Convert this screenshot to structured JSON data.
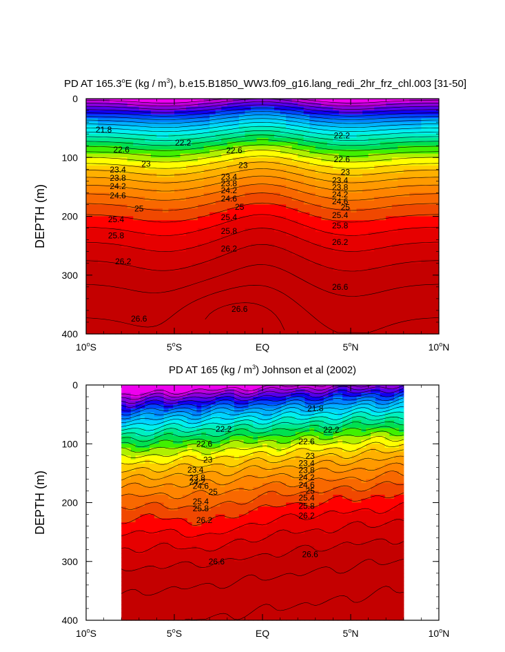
{
  "chart_data": [
    {
      "type": "heatmap",
      "title": "PD AT 165.3°E (kg / m³), b.e15.B1850_WW3.f09_g16.lang_redi_2hr_frz_chl.003 [31-50]",
      "title_parts": {
        "pre": "PD AT 165.3",
        "deg": "o",
        "mid": "E (kg / m",
        "sup": "3",
        "post": "), b.e15.B1850_WW3.f09_g16.lang_redi_2hr_frz_chl.003 [31-50]"
      },
      "xlabel": "",
      "ylabel": "DEPTH (m)",
      "xlim": [
        -10,
        10
      ],
      "ylim": [
        400,
        0
      ],
      "data_xlim": [
        -10,
        10
      ],
      "x_ticks": [
        {
          "value": -10,
          "num": "10",
          "deg": "o",
          "hem": "S"
        },
        {
          "value": -5,
          "num": "5",
          "deg": "o",
          "hem": "S"
        },
        {
          "value": 0,
          "num": "EQ",
          "deg": "",
          "hem": ""
        },
        {
          "value": 5,
          "num": "5",
          "deg": "o",
          "hem": "N"
        },
        {
          "value": 10,
          "num": "10",
          "deg": "o",
          "hem": "N"
        }
      ],
      "y_ticks": [
        {
          "value": 0,
          "label": "0"
        },
        {
          "value": 100,
          "label": "100"
        },
        {
          "value": 200,
          "label": "200"
        },
        {
          "value": 300,
          "label": "300"
        },
        {
          "value": 400,
          "label": "400"
        }
      ],
      "contour_labels": [
        {
          "text": "21.8",
          "x": -9.0,
          "y": 53
        },
        {
          "text": "22.2",
          "x": -4.5,
          "y": 75
        },
        {
          "text": "22.2",
          "x": 4.5,
          "y": 63
        },
        {
          "text": "22.6",
          "x": -8.0,
          "y": 87
        },
        {
          "text": "22.6",
          "x": -1.6,
          "y": 88
        },
        {
          "text": "22.6",
          "x": 4.5,
          "y": 103
        },
        {
          "text": "23",
          "x": -6.6,
          "y": 111
        },
        {
          "text": "23",
          "x": -1.1,
          "y": 113
        },
        {
          "text": "23",
          "x": 4.7,
          "y": 125
        },
        {
          "text": "23.4",
          "x": -8.2,
          "y": 121
        },
        {
          "text": "23.4",
          "x": -1.9,
          "y": 133
        },
        {
          "text": "23.4",
          "x": 4.4,
          "y": 139
        },
        {
          "text": "23.8",
          "x": -8.2,
          "y": 135
        },
        {
          "text": "23.8",
          "x": -1.9,
          "y": 144
        },
        {
          "text": "23.8",
          "x": 4.4,
          "y": 151
        },
        {
          "text": "24.2",
          "x": -8.2,
          "y": 149
        },
        {
          "text": "24.2",
          "x": -1.9,
          "y": 156
        },
        {
          "text": "24.2",
          "x": 4.4,
          "y": 163
        },
        {
          "text": "24.6",
          "x": -8.2,
          "y": 165
        },
        {
          "text": "24.6",
          "x": -1.9,
          "y": 170
        },
        {
          "text": "24.6",
          "x": 4.4,
          "y": 175
        },
        {
          "text": "25",
          "x": -7.0,
          "y": 187
        },
        {
          "text": "25",
          "x": -1.3,
          "y": 184
        },
        {
          "text": "25",
          "x": 4.7,
          "y": 185
        },
        {
          "text": "25.4",
          "x": -8.3,
          "y": 205
        },
        {
          "text": "25.4",
          "x": -1.9,
          "y": 202
        },
        {
          "text": "25.4",
          "x": 4.4,
          "y": 198
        },
        {
          "text": "25.8",
          "x": -8.3,
          "y": 233
        },
        {
          "text": "25.8",
          "x": -1.9,
          "y": 225
        },
        {
          "text": "25.8",
          "x": 4.4,
          "y": 216
        },
        {
          "text": "26.2",
          "x": -7.9,
          "y": 277
        },
        {
          "text": "26.2",
          "x": -1.9,
          "y": 255
        },
        {
          "text": "26.2",
          "x": 4.4,
          "y": 244
        },
        {
          "text": "26.6",
          "x": -7.0,
          "y": 374
        },
        {
          "text": "26.6",
          "x": -1.3,
          "y": 358
        },
        {
          "text": "26.6",
          "x": 4.4,
          "y": 320
        }
      ]
    },
    {
      "type": "heatmap",
      "title": "PD AT 165 (kg / m³) Johnson et al (2002)",
      "title_parts": {
        "pre": "PD AT 165 (kg / m",
        "deg": "",
        "mid": "",
        "sup": "3",
        "post": ") Johnson et al (2002)"
      },
      "xlabel": "",
      "ylabel": "DEPTH (m)",
      "xlim": [
        -10,
        10
      ],
      "ylim": [
        400,
        0
      ],
      "data_xlim": [
        -8,
        8
      ],
      "x_ticks": [
        {
          "value": -10,
          "num": "10",
          "deg": "o",
          "hem": "S"
        },
        {
          "value": -5,
          "num": "5",
          "deg": "o",
          "hem": "S"
        },
        {
          "value": 0,
          "num": "EQ",
          "deg": "",
          "hem": ""
        },
        {
          "value": 5,
          "num": "5",
          "deg": "o",
          "hem": "N"
        },
        {
          "value": 10,
          "num": "10",
          "deg": "o",
          "hem": "N"
        }
      ],
      "y_ticks": [
        {
          "value": 0,
          "label": "0"
        },
        {
          "value": 100,
          "label": "100"
        },
        {
          "value": 200,
          "label": "200"
        },
        {
          "value": 300,
          "label": "300"
        },
        {
          "value": 400,
          "label": "400"
        }
      ],
      "contour_labels": [
        {
          "text": "21.8",
          "x": 3.0,
          "y": 40
        },
        {
          "text": "22.2",
          "x": -2.2,
          "y": 75
        },
        {
          "text": "22.2",
          "x": 3.9,
          "y": 76
        },
        {
          "text": "22.6",
          "x": -3.3,
          "y": 100
        },
        {
          "text": "22.6",
          "x": 2.5,
          "y": 96
        },
        {
          "text": "23",
          "x": -3.1,
          "y": 127
        },
        {
          "text": "23",
          "x": 2.7,
          "y": 121
        },
        {
          "text": "23.4",
          "x": -3.8,
          "y": 144
        },
        {
          "text": "23.4",
          "x": 2.5,
          "y": 133
        },
        {
          "text": "23.8",
          "x": -3.7,
          "y": 158
        },
        {
          "text": "23.8",
          "x": 2.5,
          "y": 145
        },
        {
          "text": "24.2",
          "x": -3.7,
          "y": 165
        },
        {
          "text": "24.2",
          "x": 2.5,
          "y": 157
        },
        {
          "text": "24.6",
          "x": -3.5,
          "y": 172
        },
        {
          "text": "24.6",
          "x": 2.5,
          "y": 170
        },
        {
          "text": "25",
          "x": -2.8,
          "y": 182
        },
        {
          "text": "25",
          "x": 2.7,
          "y": 180
        },
        {
          "text": "25.4",
          "x": -3.5,
          "y": 198
        },
        {
          "text": "25.4",
          "x": 2.5,
          "y": 192
        },
        {
          "text": "25.8",
          "x": -3.5,
          "y": 210
        },
        {
          "text": "25.8",
          "x": 2.5,
          "y": 206
        },
        {
          "text": "26.2",
          "x": -3.3,
          "y": 230
        },
        {
          "text": "26.2",
          "x": 2.5,
          "y": 222
        },
        {
          "text": "26.6",
          "x": -2.6,
          "y": 300
        },
        {
          "text": "26.6",
          "x": 2.7,
          "y": 288
        }
      ]
    }
  ]
}
